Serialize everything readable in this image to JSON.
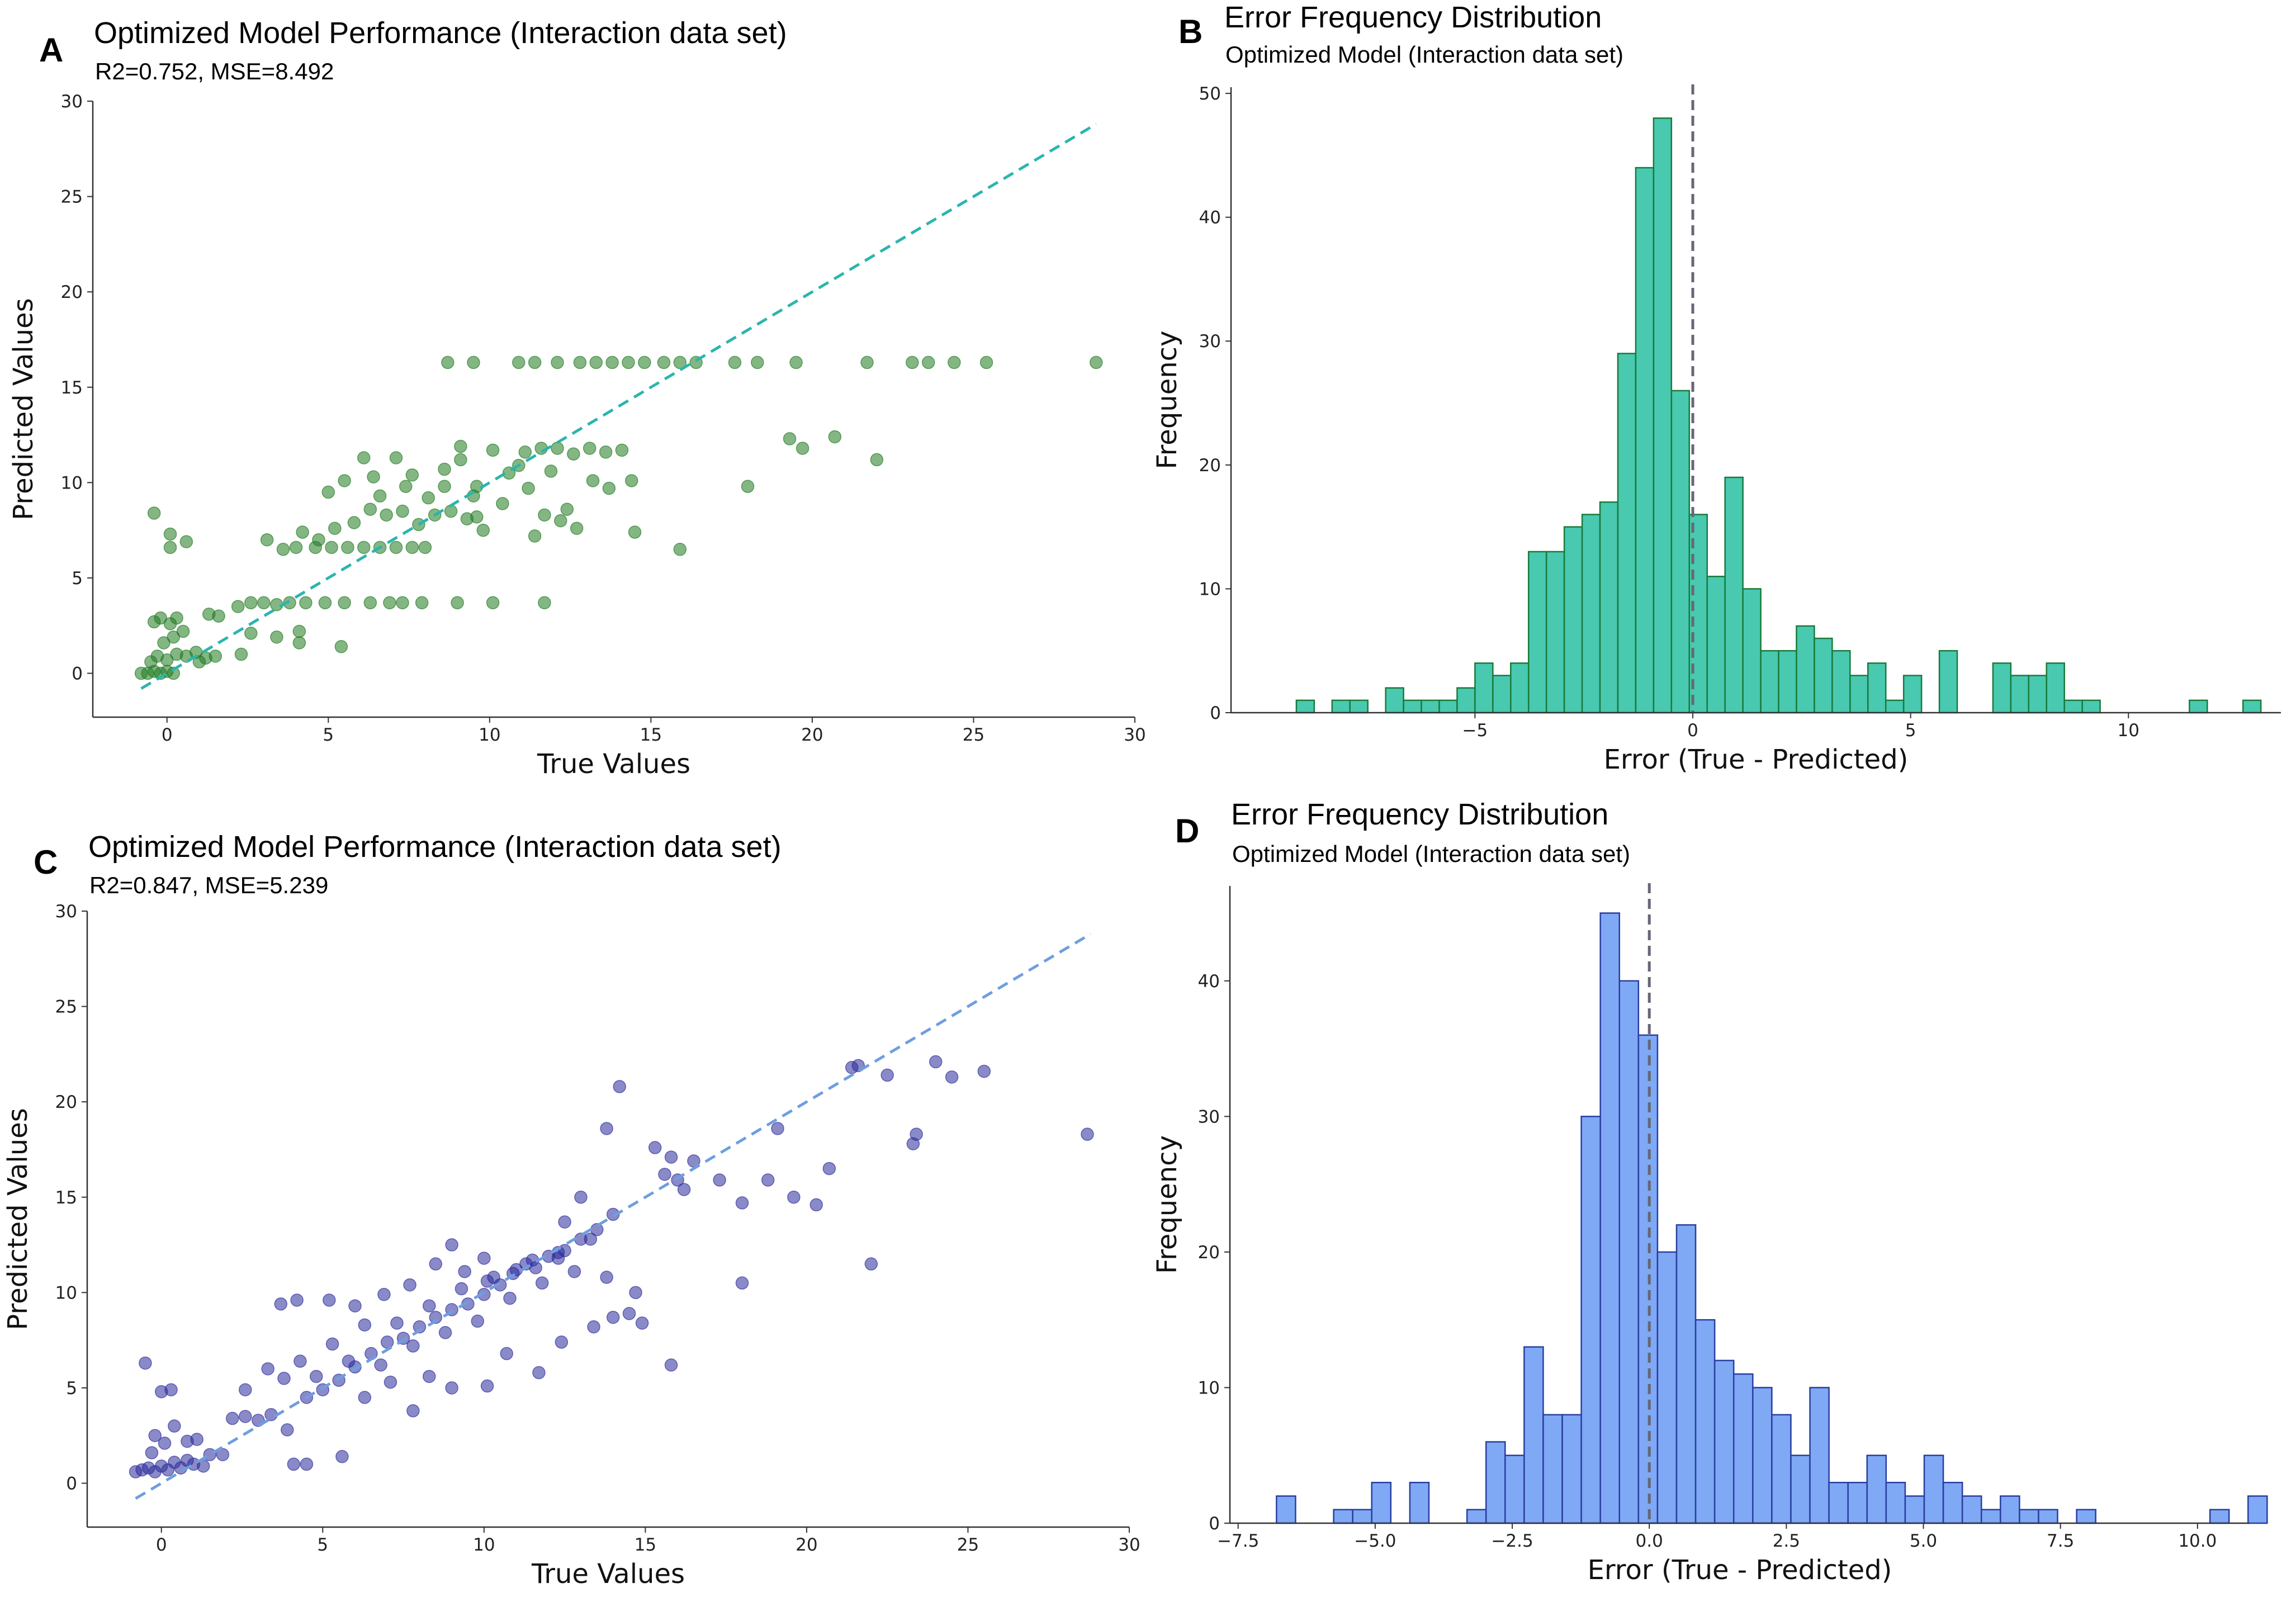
{
  "panels": {
    "A": {
      "letter": "A",
      "title": "Optimized Model Performance (Interaction data set)",
      "subtitle": "R2=0.752, MSE=8.492"
    },
    "B": {
      "letter": "B",
      "title": "Error Frequency Distribution",
      "subtitle": "Optimized Model (Interaction data set)"
    },
    "C": {
      "letter": "C",
      "title": "Optimized Model Performance (Interaction data set)",
      "subtitle": "R2=0.847, MSE=5.239"
    },
    "D": {
      "letter": "D",
      "title": "Error Frequency Distribution",
      "subtitle": "Optimized Model (Interaction data set)"
    }
  },
  "colors": {
    "a_points": "#1f7a1f",
    "a_line": "#2bb5ad",
    "b_bars": "#48c9b0",
    "b_edge": "#1a7a3a",
    "c_points": "#2a2a9a",
    "c_line": "#6f9ee0",
    "d_bars": "#7fa8f5",
    "d_edge": "#2a3ea0",
    "zero_line": "#666677"
  },
  "chart_data": [
    {
      "id": "A",
      "type": "scatter",
      "title": "Optimized Model Performance (Interaction data set)",
      "subtitle": "R2=0.752, MSE=8.492",
      "xlabel": "True Values",
      "ylabel": "Predicted Values",
      "xlim": [
        -2.3,
        30
      ],
      "ylim": [
        -2.3,
        30
      ],
      "xticks": [
        0,
        5,
        10,
        15,
        20,
        25,
        30
      ],
      "yticks": [
        0,
        5,
        10,
        15,
        20,
        25,
        30
      ],
      "reference_line": {
        "from": [
          -0.8,
          -0.8
        ],
        "to": [
          28.8,
          28.8
        ],
        "style": "dashed"
      },
      "points": [
        [
          -0.8,
          0
        ],
        [
          -0.6,
          0
        ],
        [
          -0.4,
          0.1
        ],
        [
          -0.2,
          0
        ],
        [
          0,
          0.1
        ],
        [
          0.2,
          0
        ],
        [
          -0.5,
          0.6
        ],
        [
          -0.3,
          0.9
        ],
        [
          0,
          0.7
        ],
        [
          0.3,
          1
        ],
        [
          0.6,
          0.9
        ],
        [
          0.9,
          1.1
        ],
        [
          1.2,
          0.8
        ],
        [
          1.5,
          0.9
        ],
        [
          -0.4,
          2.7
        ],
        [
          -0.2,
          2.9
        ],
        [
          0.1,
          2.6
        ],
        [
          0.3,
          2.9
        ],
        [
          0.5,
          2.2
        ],
        [
          -0.1,
          1.6
        ],
        [
          0.2,
          1.9
        ],
        [
          -0.4,
          8.4
        ],
        [
          0.1,
          7.3
        ],
        [
          0.1,
          6.6
        ],
        [
          0.6,
          6.9
        ],
        [
          1,
          0.6
        ],
        [
          1.3,
          3.1
        ],
        [
          1.6,
          3.0
        ],
        [
          2.3,
          1.0
        ],
        [
          2.2,
          3.5
        ],
        [
          2.6,
          3.7
        ],
        [
          3.0,
          3.7
        ],
        [
          3.4,
          3.6
        ],
        [
          3.8,
          3.7
        ],
        [
          4.3,
          3.7
        ],
        [
          4.9,
          3.7
        ],
        [
          5.5,
          3.7
        ],
        [
          6.3,
          3.7
        ],
        [
          6.9,
          3.7
        ],
        [
          7.9,
          3.7
        ],
        [
          9.0,
          3.7
        ],
        [
          10.1,
          3.7
        ],
        [
          11.7,
          3.7
        ],
        [
          7.3,
          3.7
        ],
        [
          2.6,
          2.1
        ],
        [
          3.4,
          1.9
        ],
        [
          4.1,
          2.2
        ],
        [
          4.1,
          1.6
        ],
        [
          5.4,
          1.4
        ],
        [
          4.0,
          6.6
        ],
        [
          4.6,
          6.6
        ],
        [
          5.1,
          6.6
        ],
        [
          5.6,
          6.6
        ],
        [
          6.1,
          6.6
        ],
        [
          6.6,
          6.6
        ],
        [
          7.1,
          6.6
        ],
        [
          7.6,
          6.6
        ],
        [
          8.0,
          6.6
        ],
        [
          3.1,
          7.0
        ],
        [
          3.6,
          6.5
        ],
        [
          4.2,
          7.4
        ],
        [
          4.7,
          7.0
        ],
        [
          5.2,
          7.6
        ],
        [
          5.8,
          7.9
        ],
        [
          6.3,
          8.6
        ],
        [
          6.8,
          8.3
        ],
        [
          7.3,
          8.5
        ],
        [
          7.8,
          7.8
        ],
        [
          8.3,
          8.3
        ],
        [
          8.8,
          8.5
        ],
        [
          9.3,
          8.1
        ],
        [
          9.8,
          7.5
        ],
        [
          5.0,
          9.5
        ],
        [
          5.5,
          10.1
        ],
        [
          6.1,
          11.3
        ],
        [
          6.6,
          9.3
        ],
        [
          7.1,
          11.3
        ],
        [
          7.6,
          10.4
        ],
        [
          8.1,
          9.2
        ],
        [
          8.6,
          10.7
        ],
        [
          9.1,
          11.2
        ],
        [
          9.6,
          9.8
        ],
        [
          10.1,
          11.7
        ],
        [
          10.6,
          10.5
        ],
        [
          11.1,
          11.6
        ],
        [
          11.6,
          11.8
        ],
        [
          12.1,
          11.8
        ],
        [
          12.6,
          11.5
        ],
        [
          13.1,
          11.8
        ],
        [
          13.6,
          11.6
        ],
        [
          14.1,
          11.7
        ],
        [
          11.2,
          9.7
        ],
        [
          11.7,
          8.3
        ],
        [
          12.2,
          8.0
        ],
        [
          12.7,
          7.6
        ],
        [
          13.2,
          10.1
        ],
        [
          13.7,
          9.7
        ],
        [
          14.4,
          10.1
        ],
        [
          14.5,
          7.4
        ],
        [
          15.9,
          6.5
        ],
        [
          11.4,
          7.2
        ],
        [
          12.4,
          8.6
        ],
        [
          10.4,
          8.9
        ],
        [
          9.6,
          8.2
        ],
        [
          8.6,
          9.8
        ],
        [
          9.1,
          11.9
        ],
        [
          6.4,
          10.3
        ],
        [
          7.4,
          9.8
        ],
        [
          10.9,
          10.9
        ],
        [
          11.9,
          10.6
        ],
        [
          9.5,
          9.3
        ],
        [
          8.7,
          16.3
        ],
        [
          9.5,
          16.3
        ],
        [
          10.9,
          16.3
        ],
        [
          11.4,
          16.3
        ],
        [
          12.1,
          16.3
        ],
        [
          12.8,
          16.3
        ],
        [
          13.3,
          16.3
        ],
        [
          13.8,
          16.3
        ],
        [
          14.3,
          16.3
        ],
        [
          14.8,
          16.3
        ],
        [
          15.4,
          16.3
        ],
        [
          15.9,
          16.3
        ],
        [
          16.4,
          16.3
        ],
        [
          17.6,
          16.3
        ],
        [
          18.3,
          16.3
        ],
        [
          19.5,
          16.3
        ],
        [
          21.7,
          16.3
        ],
        [
          23.1,
          16.3
        ],
        [
          23.6,
          16.3
        ],
        [
          24.4,
          16.3
        ],
        [
          25.4,
          16.3
        ],
        [
          28.8,
          16.3
        ],
        [
          18.0,
          9.8
        ],
        [
          19.3,
          12.3
        ],
        [
          19.7,
          11.8
        ],
        [
          20.7,
          12.4
        ],
        [
          22.0,
          11.2
        ]
      ]
    },
    {
      "id": "B",
      "type": "bar",
      "title": "Error Frequency Distribution",
      "subtitle": "Optimized Model (Interaction data set)",
      "xlabel": "Error (True - Predicted)",
      "ylabel": "Frequency",
      "xlim": [
        -10.6,
        13.5
      ],
      "ylim": [
        0,
        50.5
      ],
      "xticks": [
        -5,
        0,
        5,
        10
      ],
      "yticks": [
        0,
        10,
        20,
        30,
        40,
        50
      ],
      "bin_start": -9.1,
      "bin_width": 0.41,
      "zero_line": 0,
      "counts": [
        1,
        0,
        1,
        1,
        0,
        2,
        1,
        1,
        1,
        2,
        4,
        3,
        4,
        13,
        13,
        15,
        16,
        17,
        29,
        44,
        48,
        26,
        16,
        11,
        19,
        10,
        5,
        5,
        7,
        6,
        5,
        3,
        4,
        1,
        3,
        0,
        5,
        0,
        0,
        4,
        3,
        3,
        4,
        1,
        1,
        0,
        0,
        0,
        0,
        0,
        1,
        0,
        0,
        1
      ]
    },
    {
      "id": "C",
      "type": "scatter",
      "title": "Optimized Model Performance (Interaction data set)",
      "subtitle": "R2=0.847, MSE=5.239",
      "xlabel": "True Values",
      "ylabel": "Predicted Values",
      "xlim": [
        -2.3,
        30
      ],
      "ylim": [
        -2.3,
        30
      ],
      "xticks": [
        0,
        5,
        10,
        15,
        20,
        25,
        30
      ],
      "yticks": [
        0,
        5,
        10,
        15,
        20,
        25,
        30
      ],
      "reference_line": {
        "from": [
          -0.8,
          -0.8
        ],
        "to": [
          28.8,
          28.8
        ],
        "style": "dashed"
      },
      "points": [
        [
          -0.8,
          0.6
        ],
        [
          -0.6,
          0.7
        ],
        [
          -0.4,
          0.8
        ],
        [
          -0.2,
          0.6
        ],
        [
          0,
          0.9
        ],
        [
          0.2,
          0.7
        ],
        [
          0.4,
          1.1
        ],
        [
          0.6,
          0.8
        ],
        [
          0.8,
          1.2
        ],
        [
          1.0,
          1.0
        ],
        [
          1.3,
          0.9
        ],
        [
          1.5,
          1.5
        ],
        [
          -0.3,
          1.6
        ],
        [
          0.1,
          2.1
        ],
        [
          -0.5,
          6.3
        ],
        [
          0,
          4.8
        ],
        [
          0.3,
          4.9
        ],
        [
          0.8,
          2.2
        ],
        [
          1.1,
          2.3
        ],
        [
          -0.2,
          2.5
        ],
        [
          0.4,
          3.0
        ],
        [
          1.9,
          1.5
        ],
        [
          2.2,
          3.4
        ],
        [
          2.6,
          3.5
        ],
        [
          3.0,
          3.3
        ],
        [
          3.4,
          3.6
        ],
        [
          3.9,
          2.8
        ],
        [
          4.1,
          1.0
        ],
        [
          4.5,
          4.5
        ],
        [
          5.0,
          4.9
        ],
        [
          5.5,
          5.4
        ],
        [
          6.0,
          6.1
        ],
        [
          6.5,
          6.8
        ],
        [
          7.0,
          7.4
        ],
        [
          7.5,
          7.6
        ],
        [
          8.0,
          8.2
        ],
        [
          8.5,
          8.7
        ],
        [
          9.0,
          9.1
        ],
        [
          9.5,
          9.4
        ],
        [
          10.0,
          9.9
        ],
        [
          10.5,
          10.4
        ],
        [
          11.0,
          11.2
        ],
        [
          11.5,
          11.7
        ],
        [
          12.0,
          11.9
        ],
        [
          12.5,
          12.2
        ],
        [
          13.0,
          12.8
        ],
        [
          13.5,
          13.3
        ],
        [
          14.0,
          14.1
        ],
        [
          2.6,
          4.9
        ],
        [
          3.3,
          6.0
        ],
        [
          3.8,
          5.5
        ],
        [
          4.3,
          6.4
        ],
        [
          4.8,
          5.6
        ],
        [
          5.3,
          7.3
        ],
        [
          5.8,
          6.4
        ],
        [
          6.3,
          8.3
        ],
        [
          6.8,
          6.2
        ],
        [
          7.3,
          8.4
        ],
        [
          7.8,
          7.2
        ],
        [
          8.3,
          9.3
        ],
        [
          8.8,
          7.9
        ],
        [
          9.3,
          10.2
        ],
        [
          9.8,
          8.5
        ],
        [
          10.3,
          10.8
        ],
        [
          10.8,
          9.7
        ],
        [
          11.3,
          11.5
        ],
        [
          11.8,
          10.5
        ],
        [
          12.3,
          12.1
        ],
        [
          12.8,
          11.1
        ],
        [
          13.3,
          12.8
        ],
        [
          13.8,
          10.8
        ],
        [
          3.7,
          9.4
        ],
        [
          4.2,
          9.6
        ],
        [
          5.2,
          9.6
        ],
        [
          6.0,
          9.3
        ],
        [
          6.9,
          9.9
        ],
        [
          7.7,
          10.4
        ],
        [
          8.5,
          11.5
        ],
        [
          9.4,
          11.1
        ],
        [
          10.1,
          10.6
        ],
        [
          10.9,
          11.0
        ],
        [
          11.6,
          11.3
        ],
        [
          12.3,
          11.8
        ],
        [
          6.3,
          4.5
        ],
        [
          7.1,
          5.3
        ],
        [
          7.8,
          3.8
        ],
        [
          8.3,
          5.6
        ],
        [
          9.0,
          5.0
        ],
        [
          10.1,
          5.1
        ],
        [
          11.7,
          5.8
        ],
        [
          10.7,
          6.8
        ],
        [
          12.4,
          7.4
        ],
        [
          13.4,
          8.2
        ],
        [
          14.0,
          8.7
        ],
        [
          14.5,
          8.9
        ],
        [
          14.9,
          8.4
        ],
        [
          14.7,
          10.0
        ],
        [
          13.8,
          18.6
        ],
        [
          14.2,
          20.8
        ],
        [
          15.3,
          17.6
        ],
        [
          15.6,
          16.2
        ],
        [
          15.8,
          17.1
        ],
        [
          16.0,
          15.9
        ],
        [
          16.2,
          15.4
        ],
        [
          16.5,
          16.9
        ],
        [
          17.3,
          15.9
        ],
        [
          18.0,
          14.7
        ],
        [
          18.8,
          15.9
        ],
        [
          19.1,
          18.6
        ],
        [
          19.6,
          15.0
        ],
        [
          20.3,
          14.6
        ],
        [
          20.7,
          16.5
        ],
        [
          21.4,
          21.8
        ],
        [
          21.6,
          21.9
        ],
        [
          22.0,
          11.5
        ],
        [
          22.5,
          21.4
        ],
        [
          23.3,
          17.8
        ],
        [
          23.4,
          18.3
        ],
        [
          24.0,
          22.1
        ],
        [
          24.5,
          21.3
        ],
        [
          25.5,
          21.6
        ],
        [
          28.7,
          18.3
        ],
        [
          15.8,
          6.2
        ],
        [
          18.0,
          10.5
        ],
        [
          5.6,
          1.4
        ],
        [
          4.5,
          1.0
        ],
        [
          13.0,
          15.0
        ],
        [
          12.5,
          13.7
        ],
        [
          9.0,
          12.5
        ],
        [
          10.0,
          11.8
        ]
      ]
    },
    {
      "id": "D",
      "type": "bar",
      "title": "Error Frequency Distribution",
      "subtitle": "Optimized Model (Interaction data set)",
      "xlabel": "Error (True - Predicted)",
      "ylabel": "Frequency",
      "xlim": [
        -7.65,
        10.95
      ],
      "ylim": [
        0,
        47
      ],
      "xticks": [
        -7.5,
        -5.0,
        -2.5,
        0.0,
        2.5,
        5.0,
        7.5,
        10.0
      ],
      "xtick_labels": [
        "−7.5",
        "−5.0",
        "−2.5",
        "0.0",
        "2.5",
        "5.0",
        "7.5",
        "10.0"
      ],
      "yticks": [
        0,
        10,
        20,
        30,
        40
      ],
      "bin_start": -6.8,
      "bin_width": 0.3475,
      "zero_line": 0,
      "counts": [
        2,
        0,
        0,
        1,
        1,
        3,
        0,
        3,
        0,
        0,
        1,
        6,
        5,
        13,
        8,
        8,
        30,
        45,
        40,
        36,
        20,
        22,
        15,
        12,
        11,
        10,
        8,
        5,
        10,
        3,
        3,
        5,
        3,
        2,
        5,
        3,
        2,
        1,
        2,
        1,
        1,
        0,
        1,
        0,
        0,
        0,
        0,
        0,
        0,
        1,
        0,
        2
      ]
    }
  ]
}
